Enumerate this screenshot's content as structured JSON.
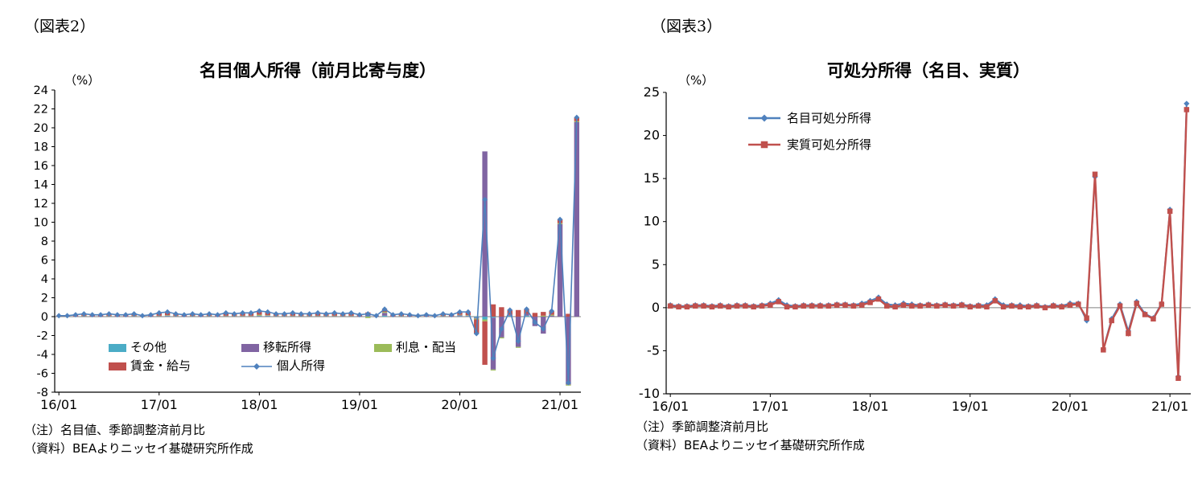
{
  "colors": {
    "blue": "#4F81BD",
    "red": "#C0504D",
    "green": "#9BBB59",
    "purple": "#8064A2",
    "cyan": "#4BACC6",
    "axis": "#000000",
    "zero_line": "#808080",
    "background": "#ffffff"
  },
  "figure2": {
    "label": "（図表2）",
    "unit": "（%）",
    "note": "（注）名目値、季節調整済前月比",
    "source": "（資料）BEAよりニッセイ基礎研究所作成",
    "chart_data": {
      "type": "bar",
      "subtype": "stacked-bar-with-line",
      "title": "名目個人所得（前月比寄与度）",
      "ylabel": "（%）",
      "ylim": [
        -8,
        24
      ],
      "ytick_step": 2,
      "grid": false,
      "legend_position": "bottom-inside",
      "categories": [
        "16/01",
        "16/02",
        "16/03",
        "16/04",
        "16/05",
        "16/06",
        "16/07",
        "16/08",
        "16/09",
        "16/10",
        "16/11",
        "16/12",
        "17/01",
        "17/02",
        "17/03",
        "17/04",
        "17/05",
        "17/06",
        "17/07",
        "17/08",
        "17/09",
        "17/10",
        "17/11",
        "17/12",
        "18/01",
        "18/02",
        "18/03",
        "18/04",
        "18/05",
        "18/06",
        "18/07",
        "18/08",
        "18/09",
        "18/10",
        "18/11",
        "18/12",
        "19/01",
        "19/02",
        "19/03",
        "19/04",
        "19/05",
        "19/06",
        "19/07",
        "19/08",
        "19/09",
        "19/10",
        "19/11",
        "19/12",
        "20/01",
        "20/02",
        "20/03",
        "20/04",
        "20/05",
        "20/06",
        "20/07",
        "20/08",
        "20/09",
        "20/10",
        "20/11",
        "20/12",
        "21/01",
        "21/02",
        "21/03"
      ],
      "x_tick_labels": [
        "16/01",
        "17/01",
        "18/01",
        "19/01",
        "20/01",
        "21/01"
      ],
      "x_tick_indices": [
        0,
        12,
        24,
        36,
        48,
        60
      ],
      "bar_series": [
        {
          "name": "その他",
          "color": "#4BACC6",
          "values": [
            0,
            0,
            0,
            0,
            0,
            0,
            0,
            0,
            0,
            0,
            0,
            0,
            0,
            0.05,
            0,
            0,
            0,
            0,
            0,
            0,
            0,
            0,
            0,
            0,
            0.05,
            0.05,
            0,
            0,
            0,
            0,
            0,
            0,
            0,
            0,
            0,
            0,
            0,
            0.05,
            0,
            0.1,
            0,
            0,
            0,
            0,
            0,
            0,
            0,
            0,
            0.05,
            0.05,
            -0.1,
            -0.3,
            -0.1,
            0,
            0.1,
            0,
            0.1,
            0,
            0,
            0,
            0,
            0,
            0
          ]
        },
        {
          "name": "移転所得",
          "color": "#8064A2",
          "values": [
            0,
            0,
            0.05,
            0.05,
            0.05,
            0.05,
            0.05,
            0.05,
            0.05,
            0.05,
            0,
            0.05,
            0.05,
            0.05,
            0.05,
            0.05,
            0.05,
            0.05,
            0.05,
            0.05,
            0.05,
            0.05,
            0.05,
            0.05,
            0.05,
            0.05,
            0.05,
            0.05,
            0.05,
            0.05,
            0.05,
            0.05,
            0.05,
            0.05,
            0.05,
            0.05,
            0.05,
            0.2,
            0,
            0.3,
            0.05,
            0.05,
            0.05,
            0,
            0.05,
            0,
            0.05,
            0.05,
            0.1,
            0.05,
            -0.1,
            17.5,
            -5.5,
            -2.2,
            0.1,
            -3.2,
            0.2,
            -1.0,
            -1.8,
            0.1,
            9.8,
            -7.2,
            20.6
          ]
        },
        {
          "name": "利息・配当",
          "color": "#9BBB59",
          "values": [
            0,
            0,
            0,
            0.05,
            0,
            0,
            0.05,
            0,
            0,
            0.05,
            0,
            0,
            0.05,
            0.05,
            0.05,
            0,
            0.05,
            0,
            0.05,
            0,
            0.05,
            0.05,
            0.05,
            0.05,
            0.1,
            0.05,
            0.05,
            0.05,
            0.05,
            0.05,
            0.05,
            0.05,
            0.05,
            0.05,
            0.05,
            0.05,
            0,
            -0.15,
            0,
            0.1,
            0,
            0.05,
            0,
            0,
            0,
            0,
            0.05,
            0,
            0.05,
            0.05,
            -0.1,
            -0.2,
            -0.1,
            -0.1,
            0,
            -0.1,
            0,
            0,
            0.1,
            0.1,
            0.1,
            -0.1,
            0.1
          ]
        },
        {
          "name": "賃金・給与",
          "color": "#C0504D",
          "values": [
            0.1,
            0.1,
            0.15,
            0.2,
            0.15,
            0.15,
            0.2,
            0.15,
            0.15,
            0.2,
            0.1,
            0.15,
            0.3,
            0.35,
            0.2,
            0.15,
            0.2,
            0.15,
            0.2,
            0.15,
            0.3,
            0.2,
            0.3,
            0.3,
            0.4,
            0.35,
            0.2,
            0.2,
            0.3,
            0.2,
            0.2,
            0.3,
            0.2,
            0.3,
            0.2,
            0.3,
            0.15,
            0.2,
            0.1,
            0.3,
            0.15,
            0.2,
            0.15,
            0.1,
            0.15,
            0.1,
            0.2,
            0.15,
            0.3,
            0.35,
            -1.5,
            -4.6,
            1.3,
            1.0,
            0.5,
            0.7,
            0.5,
            0.4,
            0.4,
            0.4,
            0.4,
            0.3,
            0.4
          ]
        }
      ],
      "line_series": [
        {
          "name": "個人所得",
          "color": "#4F81BD",
          "marker": "diamond",
          "values": [
            0.1,
            0.1,
            0.2,
            0.3,
            0.2,
            0.2,
            0.3,
            0.2,
            0.2,
            0.3,
            0.1,
            0.2,
            0.4,
            0.5,
            0.3,
            0.2,
            0.3,
            0.2,
            0.3,
            0.2,
            0.4,
            0.3,
            0.4,
            0.4,
            0.6,
            0.5,
            0.3,
            0.3,
            0.4,
            0.3,
            0.3,
            0.4,
            0.3,
            0.4,
            0.3,
            0.4,
            0.2,
            0.3,
            0.1,
            0.8,
            0.2,
            0.3,
            0.2,
            0.1,
            0.2,
            0.1,
            0.3,
            0.2,
            0.5,
            0.5,
            -1.8,
            12.4,
            -4.4,
            -1.3,
            0.7,
            -2.6,
            0.8,
            -0.6,
            -1.3,
            0.6,
            10.3,
            -7.0,
            21.1
          ]
        }
      ],
      "legend_rows": [
        [
          "その他",
          "移転所得",
          "利息・配当"
        ],
        [
          "賃金・給与",
          "個人所得"
        ]
      ]
    }
  },
  "figure3": {
    "label": "（図表3）",
    "unit": "（%）",
    "note": "（注）季節調整済前月比",
    "source": "（資料）BEAよりニッセイ基礎研究所作成",
    "chart_data": {
      "type": "line",
      "title": "可処分所得（名目、実質）",
      "ylabel": "（%）",
      "ylim": [
        -10,
        25
      ],
      "ytick_step": 5,
      "grid": false,
      "legend_position": "top-inside",
      "categories": [
        "16/01",
        "16/02",
        "16/03",
        "16/04",
        "16/05",
        "16/06",
        "16/07",
        "16/08",
        "16/09",
        "16/10",
        "16/11",
        "16/12",
        "17/01",
        "17/02",
        "17/03",
        "17/04",
        "17/05",
        "17/06",
        "17/07",
        "17/08",
        "17/09",
        "17/10",
        "17/11",
        "17/12",
        "18/01",
        "18/02",
        "18/03",
        "18/04",
        "18/05",
        "18/06",
        "18/07",
        "18/08",
        "18/09",
        "18/10",
        "18/11",
        "18/12",
        "19/01",
        "19/02",
        "19/03",
        "19/04",
        "19/05",
        "19/06",
        "19/07",
        "19/08",
        "19/09",
        "19/10",
        "19/11",
        "19/12",
        "20/01",
        "20/02",
        "20/03",
        "20/04",
        "20/05",
        "20/06",
        "20/07",
        "20/08",
        "20/09",
        "20/10",
        "20/11",
        "20/12",
        "21/01",
        "21/02",
        "21/03"
      ],
      "x_tick_labels": [
        "16/01",
        "17/01",
        "18/01",
        "19/01",
        "20/01",
        "21/01"
      ],
      "x_tick_indices": [
        0,
        12,
        24,
        36,
        48,
        60
      ],
      "series": [
        {
          "name": "名目可処分所得",
          "color": "#4F81BD",
          "marker": "diamond",
          "values": [
            0.3,
            0.2,
            0.2,
            0.3,
            0.3,
            0.2,
            0.3,
            0.2,
            0.3,
            0.3,
            0.2,
            0.3,
            0.5,
            0.9,
            0.3,
            0.2,
            0.3,
            0.3,
            0.3,
            0.3,
            0.4,
            0.4,
            0.3,
            0.5,
            0.8,
            1.2,
            0.4,
            0.3,
            0.5,
            0.4,
            0.3,
            0.4,
            0.3,
            0.4,
            0.3,
            0.4,
            0.2,
            0.3,
            0.3,
            1.0,
            0.3,
            0.3,
            0.3,
            0.2,
            0.3,
            0.1,
            0.3,
            0.2,
            0.5,
            0.5,
            -1.5,
            15.2,
            -4.8,
            -1.3,
            0.4,
            -2.7,
            0.7,
            -0.7,
            -1.2,
            0.5,
            11.4,
            -8.0,
            23.7
          ]
        },
        {
          "name": "実質可処分所得",
          "color": "#C0504D",
          "marker": "square",
          "values": [
            0.2,
            0.1,
            0.1,
            0.2,
            0.2,
            0.1,
            0.2,
            0.1,
            0.2,
            0.2,
            0.1,
            0.2,
            0.3,
            0.7,
            0.1,
            0.1,
            0.2,
            0.2,
            0.2,
            0.2,
            0.3,
            0.3,
            0.2,
            0.3,
            0.6,
            1.0,
            0.2,
            0.1,
            0.3,
            0.2,
            0.2,
            0.3,
            0.2,
            0.3,
            0.2,
            0.3,
            0.1,
            0.2,
            0.1,
            0.8,
            0.1,
            0.2,
            0.1,
            0.1,
            0.2,
            0.0,
            0.2,
            0.1,
            0.3,
            0.4,
            -1.2,
            15.5,
            -4.9,
            -1.5,
            0.2,
            -3.0,
            0.5,
            -0.8,
            -1.3,
            0.4,
            11.2,
            -8.2,
            23.0
          ]
        }
      ]
    }
  }
}
